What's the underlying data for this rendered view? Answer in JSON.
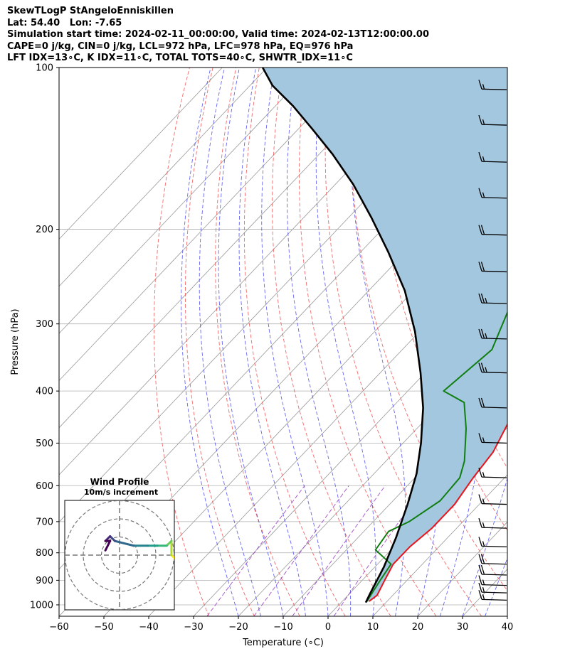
{
  "header": {
    "title": "SkewTLogP StAngeloEnniskillen",
    "latlon": "Lat: 54.40   Lon: -7.65",
    "times": "Simulation start time: 2024-02-11_00:00:00, Valid time: 2024-02-13T12:00:00.00",
    "indices1": "CAPE=0 j/kg, CIN=0 j/kg, LCL=972 hPa, LFC=978 hPa, EQ=976 hPa",
    "indices2": "LFT IDX=13∘C, K IDX=11∘C, TOTAL TOTS=40∘C, SHWTR_IDX=11∘C"
  },
  "chart_data": {
    "type": "line",
    "title": "SkewTLogP StAngeloEnniskillen",
    "xlabel": "Temperature (∘C)",
    "ylabel": "Pressure (hPa)",
    "xlim": [
      -60,
      40
    ],
    "ylim": [
      1050,
      100
    ],
    "y_scale": "log",
    "x_ticks": [
      -60,
      -50,
      -40,
      -30,
      -20,
      -10,
      0,
      10,
      20,
      30,
      40
    ],
    "y_ticks": [
      100,
      200,
      300,
      400,
      500,
      600,
      700,
      800,
      900,
      1000
    ],
    "grid": true,
    "colors": {
      "temperature": "#e8141b",
      "dewpoint": "#107e10",
      "parcel": "#000000",
      "cape_fill": "#a3c7df",
      "dry_adiabat": "#f05050",
      "moist_adiabat": "#4040f0",
      "mixing_ratio": "#9030c0",
      "isotherm": "#999999"
    },
    "series": [
      {
        "name": "temperature",
        "points": [
          [
            6,
            985
          ],
          [
            6.5,
            960
          ],
          [
            5,
            900
          ],
          [
            3.5,
            840
          ],
          [
            3.5,
            780
          ],
          [
            4.5,
            720
          ],
          [
            4.5,
            650
          ],
          [
            3,
            580
          ],
          [
            2,
            520
          ],
          [
            -1,
            455
          ],
          [
            -3,
            420
          ],
          [
            -9,
            360
          ],
          [
            -15,
            310
          ],
          [
            -16,
            285
          ],
          [
            -17,
            250
          ],
          [
            -20,
            225
          ],
          [
            -24,
            195
          ],
          [
            -30,
            170
          ],
          [
            -37,
            150
          ],
          [
            -42,
            135
          ],
          [
            -45,
            120
          ],
          [
            -47,
            110
          ],
          [
            -48,
            100
          ]
        ]
      },
      {
        "name": "dewpoint",
        "points": [
          [
            5.5,
            985
          ],
          [
            4,
            900
          ],
          [
            3,
            840
          ],
          [
            -3.5,
            790
          ],
          [
            -4.5,
            730
          ],
          [
            -2,
            700
          ],
          [
            0.5,
            640
          ],
          [
            0,
            580
          ],
          [
            -2.5,
            540
          ],
          [
            -9,
            470
          ],
          [
            -15,
            420
          ],
          [
            -22,
            400
          ],
          [
            -20,
            335
          ],
          [
            -25,
            280
          ],
          [
            -30,
            245
          ],
          [
            -28,
            220
          ],
          [
            -26,
            200
          ],
          [
            -42,
            180
          ],
          [
            -55,
            140
          ],
          [
            -62,
            115
          ],
          [
            -67,
            100
          ]
        ]
      },
      {
        "name": "parcel",
        "points": [
          [
            5.5,
            990
          ],
          [
            4.5,
            950
          ],
          [
            2,
            850
          ],
          [
            -1.5,
            750
          ],
          [
            -6,
            650
          ],
          [
            -10.5,
            570
          ],
          [
            -16,
            500
          ],
          [
            -23,
            430
          ],
          [
            -31,
            370
          ],
          [
            -41,
            310
          ],
          [
            -52,
            260
          ],
          [
            -64,
            220
          ],
          [
            -75,
            190
          ],
          [
            -86,
            165
          ],
          [
            -97,
            145
          ],
          [
            -107,
            130
          ],
          [
            -116,
            118
          ],
          [
            -125,
            108
          ],
          [
            -131,
            100
          ]
        ]
      }
    ],
    "wind_barbs": [
      {
        "p": 980,
        "speed_kt": 15
      },
      {
        "p": 950,
        "speed_kt": 15
      },
      {
        "p": 920,
        "speed_kt": 15
      },
      {
        "p": 880,
        "speed_kt": 20
      },
      {
        "p": 840,
        "speed_kt": 20
      },
      {
        "p": 780,
        "speed_kt": 15
      },
      {
        "p": 720,
        "speed_kt": 15
      },
      {
        "p": 650,
        "speed_kt": 15
      },
      {
        "p": 580,
        "speed_kt": 15
      },
      {
        "p": 500,
        "speed_kt": 15
      },
      {
        "p": 430,
        "speed_kt": 20
      },
      {
        "p": 370,
        "speed_kt": 25
      },
      {
        "p": 320,
        "speed_kt": 25
      },
      {
        "p": 275,
        "speed_kt": 25
      },
      {
        "p": 240,
        "speed_kt": 20
      },
      {
        "p": 205,
        "speed_kt": 20
      },
      {
        "p": 175,
        "speed_kt": 15
      },
      {
        "p": 150,
        "speed_kt": 15
      },
      {
        "p": 128,
        "speed_kt": 15
      },
      {
        "p": 110,
        "speed_kt": 15
      }
    ],
    "hodograph": {
      "title": "Wind Profile",
      "subtitle": "10m/s increment",
      "points": [
        [
          12,
          -1
        ],
        [
          11,
          0
        ],
        [
          11,
          3
        ],
        [
          10,
          2
        ],
        [
          8,
          2
        ],
        [
          6,
          2
        ],
        [
          3,
          2
        ],
        [
          -1,
          3
        ],
        [
          -2,
          4
        ],
        [
          -3,
          3
        ],
        [
          -2,
          3
        ],
        [
          -3,
          1
        ]
      ]
    }
  }
}
